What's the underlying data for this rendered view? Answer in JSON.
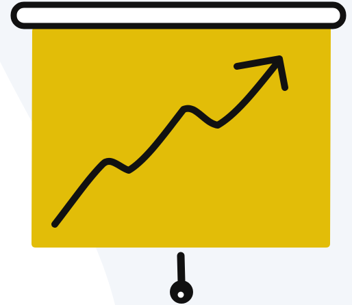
{
  "illustration": {
    "subject": "presentation-board-growth-chart",
    "icons": [
      "screen-roller-bar",
      "board-panel",
      "trend-up-arrow",
      "stand-pole",
      "stand-foot"
    ],
    "colors": {
      "background": "#f3f6fa",
      "board": "#e2bd08",
      "outline": "#111111",
      "roller_fill": "#ffffff"
    }
  }
}
